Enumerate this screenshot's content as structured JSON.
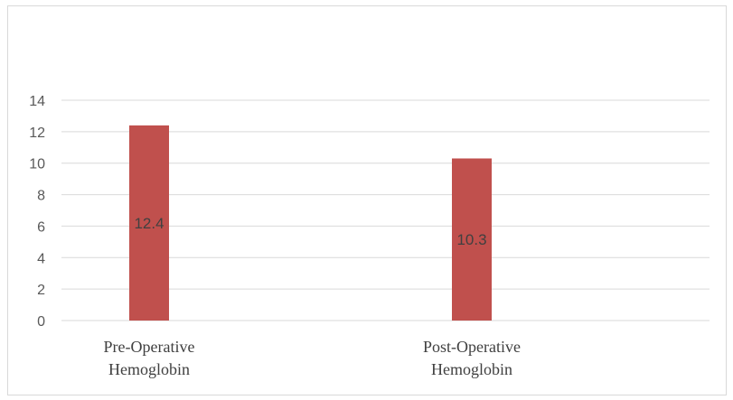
{
  "chart_data": {
    "type": "bar",
    "categories": [
      [
        "Pre-Operative",
        "Hemoglobin"
      ],
      [
        "Post-Operative",
        "Hemoglobin"
      ]
    ],
    "values": [
      12.4,
      10.3
    ],
    "data_labels": [
      "12.4",
      "10.3"
    ],
    "title": "",
    "xlabel": "",
    "ylabel": "",
    "ylim": [
      0,
      14
    ],
    "yticks": [
      0,
      2,
      4,
      6,
      8,
      10,
      12,
      14
    ],
    "grid": true,
    "legend": "none",
    "bar_color": "#c0504d",
    "gridline_color": "#d9d9d9"
  }
}
